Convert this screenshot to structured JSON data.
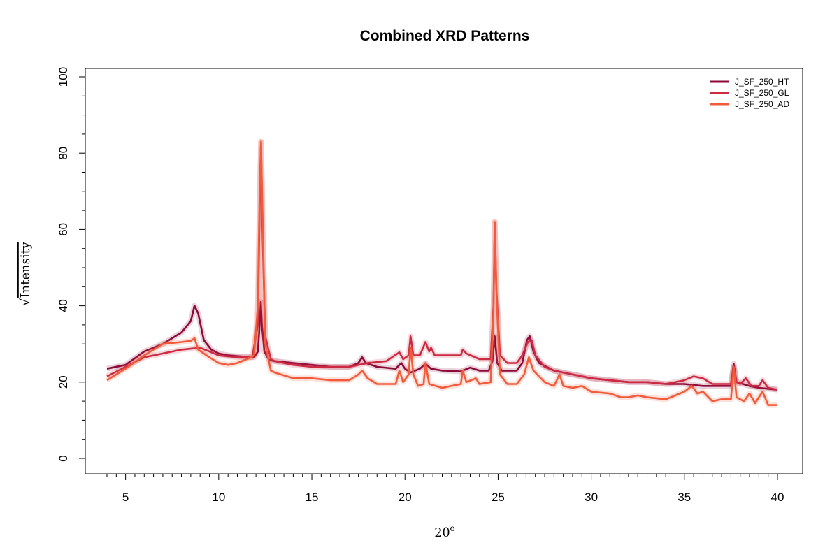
{
  "chart_data": {
    "type": "line",
    "title": "Combined XRD Patterns",
    "xlabel": "2θ",
    "xlabel_superscript": "o",
    "ylabel": "Intensity",
    "ylabel_prefix": "√",
    "xlim": [
      4,
      40
    ],
    "ylim": [
      0,
      100
    ],
    "x_ticks": [
      5,
      10,
      15,
      20,
      25,
      30,
      35,
      40
    ],
    "y_ticks": [
      0,
      20,
      40,
      60,
      80,
      100
    ],
    "x_minor_step": 0.5,
    "y_minor_step": 5,
    "grid": false,
    "legend_position": "top-right",
    "series": [
      {
        "name": "J_SF_250_HT",
        "color": "#8b0a3a",
        "points": [
          [
            4,
            23.5
          ],
          [
            5,
            24.5
          ],
          [
            6,
            28
          ],
          [
            7,
            30
          ],
          [
            8,
            33
          ],
          [
            8.5,
            36
          ],
          [
            8.7,
            40
          ],
          [
            8.9,
            38
          ],
          [
            9.2,
            31
          ],
          [
            9.6,
            28.5
          ],
          [
            10,
            27.5
          ],
          [
            10.5,
            27
          ],
          [
            11,
            26.8
          ],
          [
            11.5,
            26.6
          ],
          [
            11.9,
            26.5
          ],
          [
            12.1,
            28
          ],
          [
            12.2,
            35
          ],
          [
            12.26,
            41
          ],
          [
            12.32,
            35
          ],
          [
            12.45,
            28
          ],
          [
            12.7,
            25.8
          ],
          [
            13,
            25.5
          ],
          [
            14,
            25
          ],
          [
            15,
            24.5
          ],
          [
            16,
            24
          ],
          [
            17,
            24
          ],
          [
            17.5,
            25
          ],
          [
            17.7,
            26.5
          ],
          [
            17.9,
            25
          ],
          [
            18.5,
            24
          ],
          [
            19.5,
            23.5
          ],
          [
            19.8,
            25
          ],
          [
            20,
            23.5
          ],
          [
            20.3,
            22.5
          ],
          [
            20.8,
            23.5
          ],
          [
            21.1,
            24.8
          ],
          [
            21.4,
            23.5
          ],
          [
            22,
            23
          ],
          [
            23,
            22.8
          ],
          [
            23.5,
            23.8
          ],
          [
            24,
            23
          ],
          [
            24.5,
            23
          ],
          [
            24.7,
            25.5
          ],
          [
            24.82,
            32
          ],
          [
            24.95,
            25
          ],
          [
            25.2,
            23
          ],
          [
            26,
            23
          ],
          [
            26.3,
            25
          ],
          [
            26.55,
            31
          ],
          [
            26.7,
            32
          ],
          [
            26.9,
            28
          ],
          [
            27.2,
            25
          ],
          [
            28,
            23
          ],
          [
            29,
            22
          ],
          [
            30,
            21
          ],
          [
            31,
            20.5
          ],
          [
            32,
            20
          ],
          [
            33,
            20
          ],
          [
            34,
            19.5
          ],
          [
            35,
            19.5
          ],
          [
            36,
            19
          ],
          [
            37,
            19
          ],
          [
            37.5,
            19
          ],
          [
            37.65,
            24.8
          ],
          [
            37.8,
            20
          ],
          [
            38.5,
            19
          ],
          [
            39,
            18.5
          ],
          [
            40,
            18
          ]
        ]
      },
      {
        "name": "J_SF_250_GL",
        "color": "#cc2a43",
        "points": [
          [
            4,
            21.5
          ],
          [
            5,
            24
          ],
          [
            6,
            26.5
          ],
          [
            7,
            27.5
          ],
          [
            8,
            28.5
          ],
          [
            9,
            29
          ],
          [
            9.5,
            28
          ],
          [
            10,
            27
          ],
          [
            11,
            26.5
          ],
          [
            11.8,
            26.5
          ],
          [
            12.1,
            35
          ],
          [
            12.2,
            65
          ],
          [
            12.27,
            83
          ],
          [
            12.35,
            60
          ],
          [
            12.5,
            32
          ],
          [
            12.8,
            26
          ],
          [
            13,
            25.5
          ],
          [
            14,
            24.5
          ],
          [
            15,
            24
          ],
          [
            16,
            24
          ],
          [
            17,
            24
          ],
          [
            18,
            25
          ],
          [
            19,
            25.5
          ],
          [
            19.7,
            27.8
          ],
          [
            19.9,
            26
          ],
          [
            20.2,
            27
          ],
          [
            20.3,
            32
          ],
          [
            20.45,
            27
          ],
          [
            20.8,
            27
          ],
          [
            21.1,
            30.5
          ],
          [
            21.3,
            28
          ],
          [
            21.4,
            29
          ],
          [
            21.6,
            27
          ],
          [
            22,
            27
          ],
          [
            23,
            27
          ],
          [
            23.1,
            28.5
          ],
          [
            23.3,
            27.5
          ],
          [
            24,
            26
          ],
          [
            24.6,
            26
          ],
          [
            24.75,
            40
          ],
          [
            24.82,
            62
          ],
          [
            24.9,
            45
          ],
          [
            25.1,
            27
          ],
          [
            25.5,
            25
          ],
          [
            26,
            25
          ],
          [
            26.3,
            27
          ],
          [
            26.6,
            30.5
          ],
          [
            26.8,
            31
          ],
          [
            27,
            27
          ],
          [
            27.5,
            24
          ],
          [
            28,
            23
          ],
          [
            29,
            22
          ],
          [
            30,
            21
          ],
          [
            31,
            20.5
          ],
          [
            32,
            20
          ],
          [
            33,
            20
          ],
          [
            34,
            19.5
          ],
          [
            35,
            20.5
          ],
          [
            35.5,
            21.5
          ],
          [
            36,
            21
          ],
          [
            36.5,
            19.5
          ],
          [
            37,
            19.5
          ],
          [
            37.5,
            19.5
          ],
          [
            37.65,
            24
          ],
          [
            37.8,
            20
          ],
          [
            38,
            19.5
          ],
          [
            38.3,
            21
          ],
          [
            38.6,
            19
          ],
          [
            39,
            19
          ],
          [
            39.2,
            20.5
          ],
          [
            39.5,
            18.5
          ],
          [
            40,
            18
          ]
        ]
      },
      {
        "name": "J_SF_250_AD",
        "color": "#f15a3a",
        "points": [
          [
            4,
            20.5
          ],
          [
            4.5,
            22
          ],
          [
            5,
            23.5
          ],
          [
            6,
            27
          ],
          [
            7,
            30
          ],
          [
            8,
            30.5
          ],
          [
            8.5,
            30.8
          ],
          [
            8.7,
            31.5
          ],
          [
            8.9,
            28.5
          ],
          [
            9.5,
            26.5
          ],
          [
            10,
            25
          ],
          [
            10.5,
            24.5
          ],
          [
            11,
            25
          ],
          [
            11.5,
            26
          ],
          [
            11.9,
            27
          ],
          [
            12.1,
            40
          ],
          [
            12.2,
            70
          ],
          [
            12.27,
            83
          ],
          [
            12.35,
            65
          ],
          [
            12.5,
            30
          ],
          [
            12.8,
            23
          ],
          [
            13,
            22.5
          ],
          [
            14,
            21
          ],
          [
            15,
            21
          ],
          [
            16,
            20.5
          ],
          [
            17,
            20.5
          ],
          [
            17.5,
            22
          ],
          [
            17.7,
            23
          ],
          [
            18,
            21
          ],
          [
            18.5,
            19.5
          ],
          [
            19.5,
            19.5
          ],
          [
            19.7,
            23
          ],
          [
            19.9,
            20
          ],
          [
            20.2,
            22
          ],
          [
            20.3,
            29
          ],
          [
            20.45,
            22
          ],
          [
            20.7,
            19
          ],
          [
            21,
            19.5
          ],
          [
            21.1,
            25
          ],
          [
            21.3,
            19.5
          ],
          [
            22,
            18.5
          ],
          [
            23,
            19.5
          ],
          [
            23.1,
            23
          ],
          [
            23.3,
            20
          ],
          [
            23.8,
            21
          ],
          [
            24,
            19.5
          ],
          [
            24.6,
            20
          ],
          [
            24.75,
            38
          ],
          [
            24.82,
            62
          ],
          [
            24.92,
            42
          ],
          [
            25.1,
            22
          ],
          [
            25.5,
            19.5
          ],
          [
            26,
            19.5
          ],
          [
            26.4,
            22
          ],
          [
            26.65,
            26.5
          ],
          [
            26.9,
            23
          ],
          [
            27.5,
            20
          ],
          [
            28,
            19
          ],
          [
            28.3,
            22
          ],
          [
            28.5,
            19
          ],
          [
            29,
            18.5
          ],
          [
            29.5,
            19
          ],
          [
            30,
            17.5
          ],
          [
            31,
            17
          ],
          [
            31.6,
            16
          ],
          [
            32,
            16
          ],
          [
            32.5,
            16.5
          ],
          [
            33,
            16
          ],
          [
            34,
            15.5
          ],
          [
            35,
            17.5
          ],
          [
            35.4,
            19
          ],
          [
            35.7,
            17
          ],
          [
            36,
            17.5
          ],
          [
            36.5,
            15
          ],
          [
            37,
            15.5
          ],
          [
            37.5,
            15.5
          ],
          [
            37.65,
            24
          ],
          [
            37.8,
            16
          ],
          [
            38.2,
            15
          ],
          [
            38.5,
            17
          ],
          [
            38.8,
            14.5
          ],
          [
            39.2,
            17.5
          ],
          [
            39.5,
            14
          ],
          [
            40,
            14
          ]
        ]
      }
    ]
  }
}
